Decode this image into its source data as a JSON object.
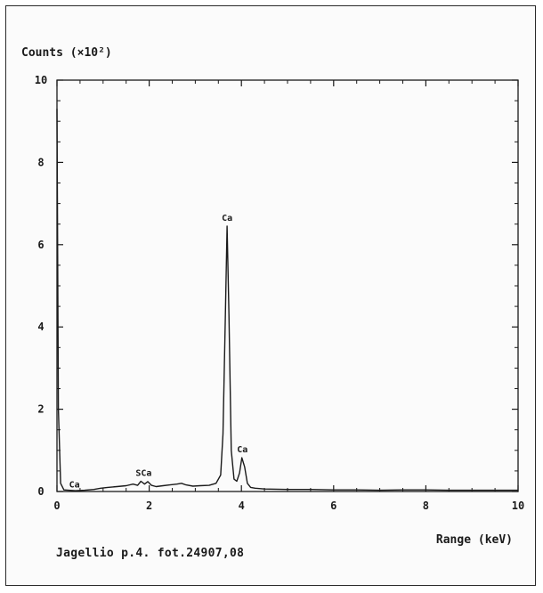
{
  "chart_data": {
    "type": "line",
    "title": "",
    "ylabel": "Counts (×10²)",
    "xlabel": "Range (keV)",
    "xlim": [
      0,
      10
    ],
    "ylim": [
      0,
      10
    ],
    "x_ticks": [
      "0",
      "2",
      "4",
      "6",
      "8",
      "10"
    ],
    "y_ticks": [
      "0",
      "2",
      "4",
      "6",
      "8",
      "10"
    ],
    "grid": false,
    "series": [
      {
        "x": [
          0.0,
          0.03,
          0.08,
          0.15,
          0.25,
          0.4,
          0.6,
          0.8,
          0.95,
          1.1,
          1.3,
          1.5,
          1.65,
          1.75,
          1.82,
          1.9,
          1.97,
          2.05,
          2.15,
          2.3,
          2.45,
          2.6,
          2.7,
          2.8,
          2.95,
          3.1,
          3.3,
          3.45,
          3.55,
          3.6,
          3.65,
          3.69,
          3.73,
          3.78,
          3.84,
          3.9,
          3.96,
          4.01,
          4.07,
          4.13,
          4.2,
          4.3,
          4.5,
          5.0,
          5.5,
          6.0,
          6.5,
          7.0,
          7.5,
          8.0,
          8.5,
          9.0,
          9.5,
          10.0
        ],
        "y": [
          9.3,
          2.0,
          0.2,
          0.04,
          0.03,
          0.02,
          0.03,
          0.05,
          0.08,
          0.1,
          0.12,
          0.14,
          0.18,
          0.15,
          0.25,
          0.18,
          0.24,
          0.15,
          0.12,
          0.14,
          0.16,
          0.18,
          0.2,
          0.16,
          0.13,
          0.14,
          0.15,
          0.2,
          0.4,
          1.4,
          4.2,
          6.45,
          4.3,
          1.0,
          0.3,
          0.25,
          0.45,
          0.82,
          0.6,
          0.2,
          0.1,
          0.08,
          0.06,
          0.05,
          0.05,
          0.04,
          0.04,
          0.03,
          0.04,
          0.04,
          0.03,
          0.03,
          0.03,
          0.03
        ]
      }
    ],
    "annotations": [
      {
        "text": "Ca",
        "x": 0.38,
        "y": 0.1
      },
      {
        "text": "SCa",
        "x": 1.88,
        "y": 0.38
      },
      {
        "text": "Ca",
        "x": 3.69,
        "y": 6.58
      },
      {
        "text": "Ca",
        "x": 4.02,
        "y": 0.95
      }
    ]
  },
  "caption": "Jagellio p.4. fot.24907,08"
}
